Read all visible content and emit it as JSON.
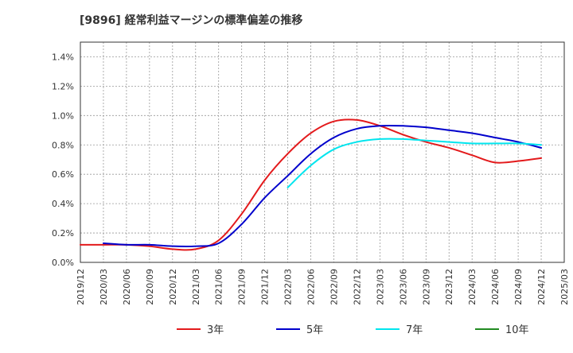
{
  "chart_data": {
    "type": "line",
    "title": "[9896]  経常利益マージンの標準偏差の推移",
    "xlabel": "",
    "ylabel": "",
    "ylim": [
      0.0,
      1.5
    ],
    "y_ticks": [
      "0.0%",
      "0.2%",
      "0.4%",
      "0.6%",
      "0.8%",
      "1.0%",
      "1.2%",
      "1.4%"
    ],
    "x_ticks": [
      "2019/12",
      "2020/03",
      "2020/06",
      "2020/09",
      "2020/12",
      "2021/03",
      "2021/06",
      "2021/09",
      "2021/12",
      "2022/03",
      "2022/06",
      "2022/09",
      "2022/12",
      "2023/03",
      "2023/06",
      "2023/09",
      "2023/12",
      "2024/03",
      "2024/06",
      "2024/09",
      "2024/12",
      "2025/03"
    ],
    "grid": true,
    "legend_position": "bottom",
    "series": [
      {
        "name": "3年",
        "color": "#e31a1c",
        "values": [
          [
            "2019/12",
            0.12
          ],
          [
            "2020/03",
            0.12
          ],
          [
            "2020/06",
            0.12
          ],
          [
            "2020/09",
            0.11
          ],
          [
            "2020/12",
            0.09
          ],
          [
            "2021/03",
            0.09
          ],
          [
            "2021/06",
            0.15
          ],
          [
            "2021/09",
            0.33
          ],
          [
            "2021/12",
            0.56
          ],
          [
            "2022/03",
            0.74
          ],
          [
            "2022/06",
            0.88
          ],
          [
            "2022/09",
            0.96
          ],
          [
            "2022/12",
            0.97
          ],
          [
            "2023/03",
            0.93
          ],
          [
            "2023/06",
            0.87
          ],
          [
            "2023/09",
            0.82
          ],
          [
            "2023/12",
            0.78
          ],
          [
            "2024/03",
            0.73
          ],
          [
            "2024/06",
            0.68
          ],
          [
            "2024/09",
            0.69
          ],
          [
            "2024/12",
            0.71
          ]
        ]
      },
      {
        "name": "5年",
        "color": "#0000cc",
        "values": [
          [
            "2020/03",
            0.13
          ],
          [
            "2020/06",
            0.12
          ],
          [
            "2020/09",
            0.12
          ],
          [
            "2020/12",
            0.11
          ],
          [
            "2021/03",
            0.11
          ],
          [
            "2021/06",
            0.13
          ],
          [
            "2021/09",
            0.26
          ],
          [
            "2021/12",
            0.44
          ],
          [
            "2022/03",
            0.59
          ],
          [
            "2022/06",
            0.74
          ],
          [
            "2022/09",
            0.85
          ],
          [
            "2022/12",
            0.91
          ],
          [
            "2023/03",
            0.93
          ],
          [
            "2023/06",
            0.93
          ],
          [
            "2023/09",
            0.92
          ],
          [
            "2023/12",
            0.9
          ],
          [
            "2024/03",
            0.88
          ],
          [
            "2024/06",
            0.85
          ],
          [
            "2024/09",
            0.82
          ],
          [
            "2024/12",
            0.78
          ]
        ]
      },
      {
        "name": "7年",
        "color": "#00e5ee",
        "values": [
          [
            "2022/03",
            0.51
          ],
          [
            "2022/06",
            0.66
          ],
          [
            "2022/09",
            0.77
          ],
          [
            "2022/12",
            0.82
          ],
          [
            "2023/03",
            0.84
          ],
          [
            "2023/06",
            0.84
          ],
          [
            "2023/09",
            0.83
          ],
          [
            "2023/12",
            0.82
          ],
          [
            "2024/03",
            0.81
          ],
          [
            "2024/06",
            0.81
          ],
          [
            "2024/09",
            0.81
          ],
          [
            "2024/12",
            0.8
          ]
        ]
      },
      {
        "name": "10年",
        "color": "#228b22",
        "values": []
      }
    ]
  }
}
